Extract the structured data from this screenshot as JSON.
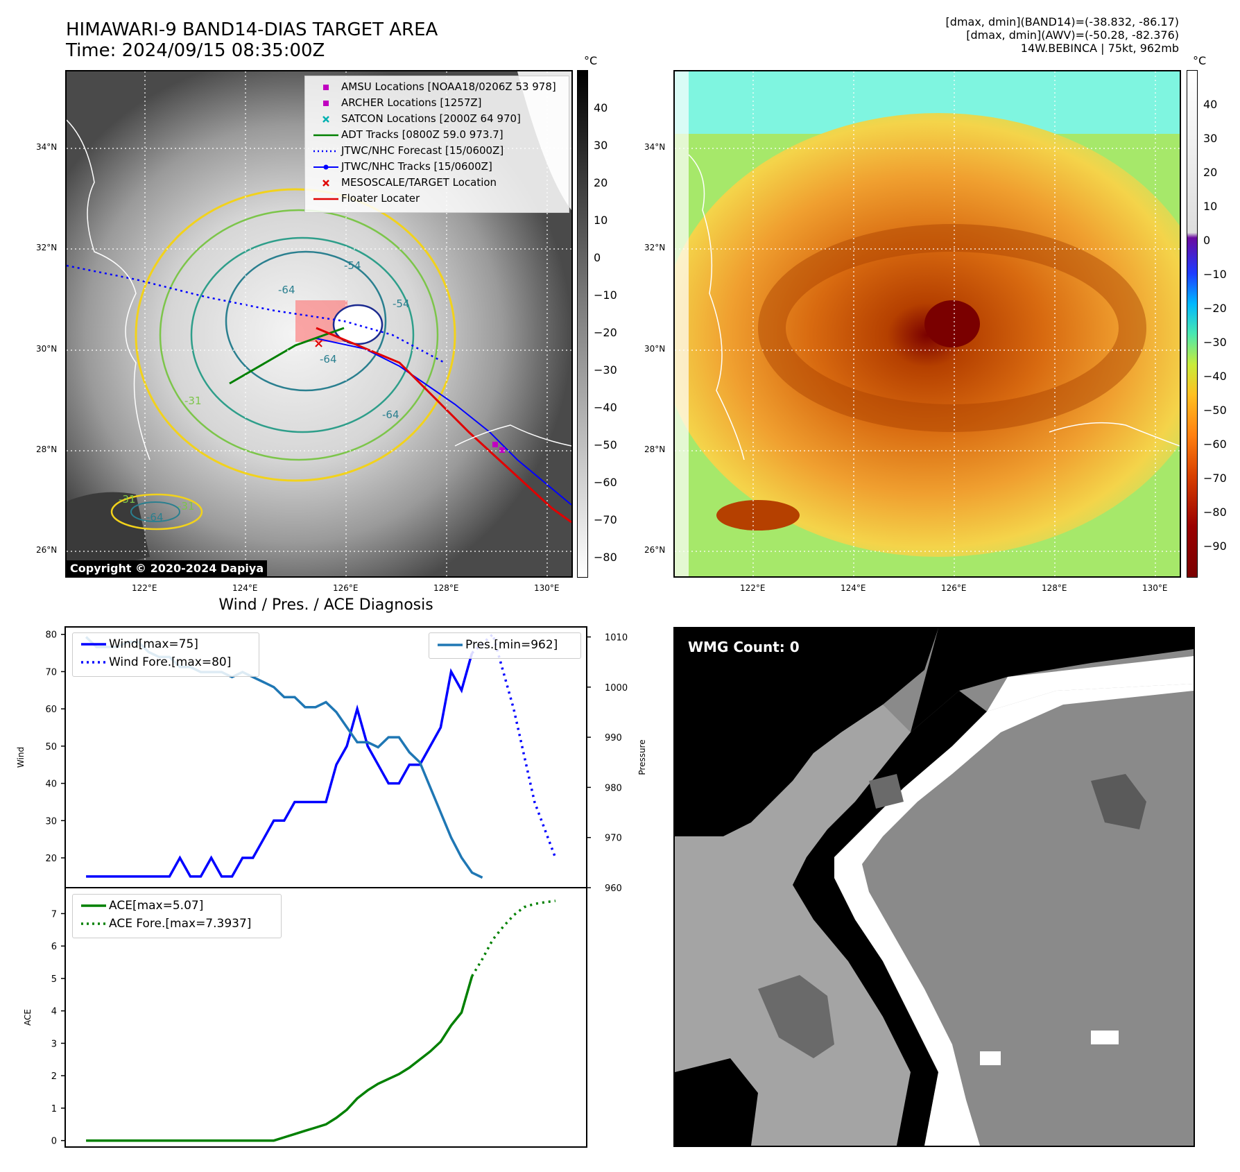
{
  "header": {
    "title_line1": "HIMAWARI-9 BAND14-DIAS TARGET AREA",
    "title_line2": "Time: 2024/09/15 08:35:00Z",
    "info_line1": "[dmax, dmin](BAND14)=(-38.832, -86.17)",
    "info_line2": "[dmax, dmin](AWV)=(-50.28, -82.376)",
    "info_line3": "14W.BEBINCA | 75kt, 962mb"
  },
  "map": {
    "lat_labels": [
      "34°N",
      "32°N",
      "30°N",
      "28°N",
      "26°N"
    ],
    "lon_labels": [
      "122°E",
      "124°E",
      "126°E",
      "128°E",
      "130°E"
    ],
    "copyright": "Copyright © 2020-2024 Dapiya",
    "contour_labels": [
      "-64",
      "-54",
      "-64",
      "-64",
      "-31",
      "-31",
      "-31",
      "-54",
      "-64"
    ]
  },
  "legend": {
    "items": [
      {
        "label": "AMSU Locations [NOAA18/0206Z 53 978]",
        "marker": "square",
        "color": "#c000c0"
      },
      {
        "label": "ARCHER Locations [1257Z]",
        "marker": "square",
        "color": "#c000c0"
      },
      {
        "label": "SATCON Locations [2000Z 64 970]",
        "marker": "x",
        "color": "#00b0b0"
      },
      {
        "label": "ADT Tracks [0800Z 59.0 973.7]",
        "marker": "line",
        "color": "#008000"
      },
      {
        "label": "JTWC/NHC Forecast [15/0600Z]",
        "marker": "dotted",
        "color": "#0000ff"
      },
      {
        "label": "JTWC/NHC Tracks [15/0600Z]",
        "marker": "line-dot",
        "color": "#0000ff"
      },
      {
        "label": "MESOSCALE/TARGET Location",
        "marker": "x",
        "color": "#e00000"
      },
      {
        "label": "Floater Locater",
        "marker": "line",
        "color": "#e00000"
      }
    ]
  },
  "colorbar_gray": {
    "unit": "°C",
    "ticks": [
      "40",
      "30",
      "20",
      "10",
      "0",
      "−10",
      "−20",
      "−30",
      "−40",
      "−50",
      "−60",
      "−70",
      "−80"
    ]
  },
  "colorbar_color": {
    "unit": "°C",
    "ticks": [
      "40",
      "30",
      "20",
      "10",
      "0",
      "−10",
      "−20",
      "−30",
      "−40",
      "−50",
      "−60",
      "−70",
      "−80",
      "−90"
    ]
  },
  "wmg": {
    "label": "WMG Count: 0"
  },
  "chart_data": [
    {
      "type": "line",
      "title": "Wind / Pres. / ACE Diagnosis",
      "ylabel": "Wind",
      "ylabel_right": "Pressure",
      "ylim": [
        12,
        82
      ],
      "ylim_right": [
        960,
        1012
      ],
      "yticks": [
        20,
        30,
        40,
        50,
        60,
        70,
        80
      ],
      "yticks_right": [
        960,
        970,
        980,
        990,
        1000,
        1010
      ],
      "legend_left": [
        "Wind[max=75]",
        "Wind Fore.[max=80]"
      ],
      "legend_right": [
        "Pres.[min=962]"
      ],
      "series": [
        {
          "name": "Wind[max=75]",
          "axis": "left",
          "style": "solid",
          "color": "#0000ff",
          "x": [
            0,
            1,
            2,
            3,
            4,
            5,
            6,
            7,
            8,
            9,
            10,
            11,
            12,
            13,
            14,
            15,
            16,
            17,
            18,
            19,
            20,
            21,
            22,
            23,
            24,
            25,
            26,
            27,
            28,
            29,
            30,
            31,
            32,
            33,
            34,
            35,
            36,
            37
          ],
          "y": [
            15,
            15,
            15,
            15,
            15,
            15,
            15,
            15,
            15,
            20,
            15,
            15,
            20,
            15,
            15,
            20,
            20,
            25,
            30,
            30,
            35,
            35,
            35,
            35,
            45,
            50,
            60,
            50,
            45,
            40,
            40,
            45,
            45,
            50,
            55,
            70,
            65,
            75
          ]
        },
        {
          "name": "Wind Fore.[max=80]",
          "axis": "left",
          "style": "dotted",
          "color": "#0000ff",
          "x": [
            37,
            39,
            41,
            43,
            45
          ],
          "y": [
            75,
            80,
            60,
            35,
            20
          ]
        },
        {
          "name": "Pres.[min=962]",
          "axis": "right",
          "style": "solid",
          "color": "#1f77b4",
          "x": [
            0,
            1,
            2,
            3,
            4,
            5,
            6,
            7,
            8,
            9,
            10,
            11,
            12,
            13,
            14,
            15,
            16,
            17,
            18,
            19,
            20,
            21,
            22,
            23,
            24,
            25,
            26,
            27,
            28,
            29,
            30,
            31,
            32,
            33,
            34,
            35,
            36,
            37,
            38
          ],
          "y": [
            1010,
            1008,
            1008,
            1008,
            1009,
            1009,
            1007,
            1006,
            1006,
            1004,
            1004,
            1003,
            1003,
            1003,
            1002,
            1003,
            1002,
            1001,
            1000,
            998,
            998,
            996,
            996,
            997,
            995,
            992,
            989,
            989,
            988,
            990,
            990,
            987,
            985,
            980,
            975,
            970,
            966,
            963,
            962
          ]
        }
      ]
    },
    {
      "type": "line",
      "ylabel": "ACE",
      "ylim": [
        -0.2,
        7.8
      ],
      "yticks": [
        0,
        1,
        2,
        3,
        4,
        5,
        6,
        7
      ],
      "legend": [
        "ACE[max=5.07]",
        "ACE Fore.[max=7.3937]"
      ],
      "series": [
        {
          "name": "ACE[max=5.07]",
          "style": "solid",
          "color": "#008000",
          "x": [
            0,
            2,
            4,
            6,
            8,
            10,
            12,
            14,
            16,
            18,
            19,
            20,
            21,
            22,
            23,
            24,
            25,
            26,
            27,
            28,
            29,
            30,
            31,
            32,
            33,
            34,
            35,
            36,
            37
          ],
          "y": [
            0,
            0,
            0,
            0,
            0,
            0,
            0,
            0,
            0,
            0,
            0.1,
            0.2,
            0.3,
            0.4,
            0.5,
            0.7,
            0.95,
            1.3,
            1.55,
            1.75,
            1.9,
            2.05,
            2.25,
            2.5,
            2.75,
            3.05,
            3.55,
            3.95,
            5.07
          ]
        },
        {
          "name": "ACE Fore.[max=7.3937]",
          "style": "dotted",
          "color": "#008000",
          "x": [
            37,
            38,
            39,
            40,
            41,
            42,
            43,
            44,
            45
          ],
          "y": [
            5.07,
            5.6,
            6.2,
            6.6,
            6.95,
            7.2,
            7.3,
            7.35,
            7.3937
          ]
        }
      ]
    }
  ]
}
